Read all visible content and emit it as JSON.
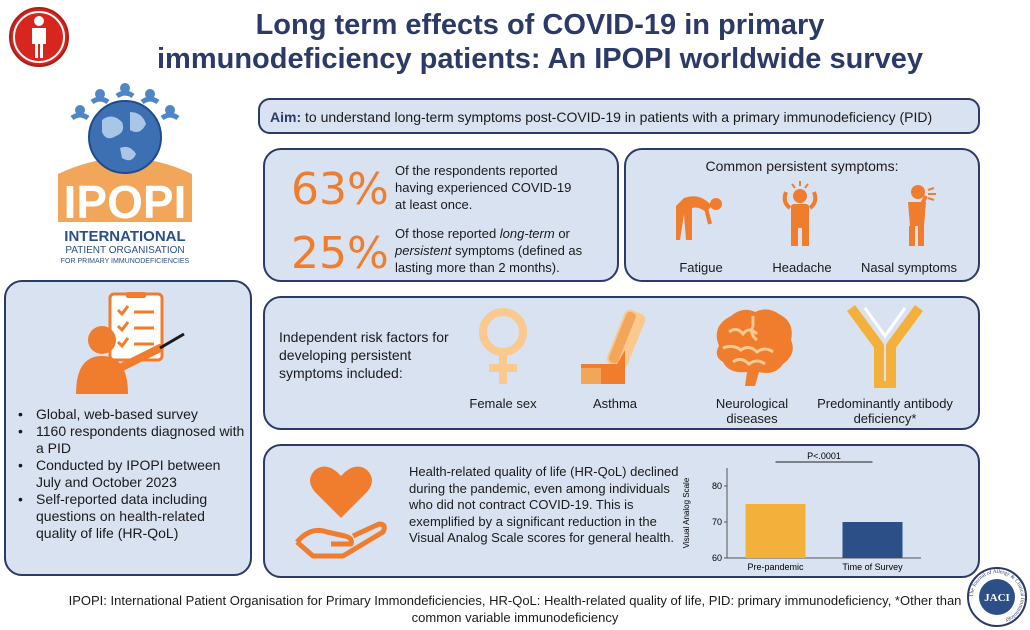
{
  "title": {
    "line1": "Long term effects of COVID-19 in primary",
    "line2": "immunodeficiency patients: An IPOPI worldwide survey"
  },
  "logo": {
    "name": "IPOPI",
    "line1": "INTERNATIONAL",
    "line2": "PATIENT ORGANISATION",
    "line3": "FOR PRIMARY IMMUNODEFICIENCIES"
  },
  "aim": {
    "label": "Aim:",
    "text": "to understand long-term symptoms post-COVID-19 in patients with a primary immunodeficiency (PID)"
  },
  "stats": [
    {
      "value": "63%",
      "text": "Of the respondents reported having experienced COVID-19 at least once."
    },
    {
      "value": "25%",
      "text_pre": "Of those reported ",
      "text_em1": "long-term",
      "text_mid": " or ",
      "text_em2": "persistent",
      "text_post": " symptoms (defined as lasting more than 2 months)."
    }
  ],
  "symptoms": {
    "heading": "Common persistent symptoms:",
    "items": [
      "Fatigue",
      "Headache",
      "Nasal symptoms"
    ]
  },
  "risk": {
    "intro": "Independent risk factors for developing persistent symptoms included:",
    "items": [
      "Female sex",
      "Asthma",
      "Neurological diseases",
      "Predominantly antibody deficiency*"
    ]
  },
  "survey": {
    "bullets": [
      "Global, web-based survey",
      "1160 respondents diagnosed with a PID",
      "Conducted by IPOPI between July and October 2023",
      "Self-reported data including questions on health-related quality of life (HR-QoL)"
    ]
  },
  "hrqol": {
    "text": "Health-related quality of life (HR-QoL) declined during the pandemic, even among individuals who did not contract COVID-19. This is exemplified by a significant reduction in the Visual Analog Scale scores for general health."
  },
  "chart_data": {
    "type": "bar",
    "categories": [
      "Pre-pandemic",
      "Time of Survey"
    ],
    "values": [
      75,
      70
    ],
    "ylabel": "Visual Analog Scale",
    "ylim": [
      60,
      85
    ],
    "yticks": [
      "60",
      "70",
      "80"
    ],
    "annotation": "P<.0001",
    "colors": [
      "#f3b13c",
      "#2b4f86"
    ]
  },
  "footer": {
    "line1": "IPOPI: International Patient Organisation for Primary Immondeficiencies, HR-QoL: Health-related quality of life, PID: primary immunodeficiency, *Other than",
    "line2": "common variable immunodeficiency"
  },
  "jaci": {
    "badge": "JACI",
    "ring": "The Journal of Allergy & Clinical Immunology"
  },
  "colors": {
    "accent": "#ef7d2d",
    "navy": "#2b3a67",
    "panel": "#d9e2f1",
    "red": "#d7261e"
  }
}
